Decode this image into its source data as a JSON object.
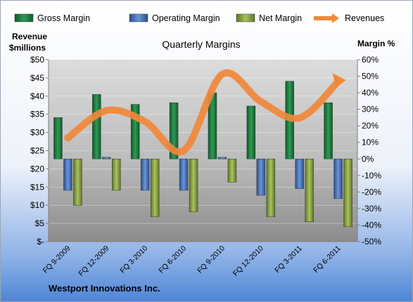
{
  "chart_data": {
    "type": "bar",
    "title": "Quarterly Margins",
    "company": "Westport Innovations Inc.",
    "left_axis_label_line1": "Revenue",
    "left_axis_label_line2": "$millions",
    "right_axis_label": "Margin %",
    "categories": [
      "FQ 9-2009",
      "FQ 12-2009",
      "FQ 3-2010",
      "FQ 6-2010",
      "FQ 9-2010",
      "FQ 12-2010",
      "FQ 3-2011",
      "FQ 6-2011"
    ],
    "series": [
      {
        "name": "Gross Margin",
        "axis": "right",
        "type": "bar",
        "color": "#1a7a3e",
        "values": [
          25,
          39,
          33,
          34,
          40,
          32,
          47,
          34
        ]
      },
      {
        "name": "Operating Margin",
        "axis": "right",
        "type": "bar",
        "color": "#3d6ab5",
        "values": [
          -19,
          1,
          -19,
          -19,
          1,
          -22,
          -18,
          -24
        ]
      },
      {
        "name": "Net Margin",
        "axis": "right",
        "type": "bar",
        "color": "#7f9a3c",
        "values": [
          -28,
          -19,
          -35,
          -32,
          -14,
          -35,
          -38,
          -41
        ]
      },
      {
        "name": "Revenues",
        "axis": "left",
        "type": "line",
        "color": "#f0883a",
        "values": [
          28.5,
          36,
          33,
          25,
          46,
          38.5,
          34,
          44
        ]
      }
    ],
    "left_axis": {
      "min": 0,
      "max": 50,
      "step": 5,
      "tick_labels": [
        "$-",
        "$5",
        "$10",
        "$15",
        "$20",
        "$25",
        "$30",
        "$35",
        "$40",
        "$45",
        "$50"
      ]
    },
    "right_axis": {
      "min": -50,
      "max": 60,
      "step": 10,
      "tick_labels": [
        "-50%",
        "-40%",
        "-30%",
        "-20%",
        "-10%",
        "0%",
        "10%",
        "20%",
        "30%",
        "40%",
        "50%",
        "60%"
      ]
    },
    "legend_position": "top",
    "grid": true
  }
}
